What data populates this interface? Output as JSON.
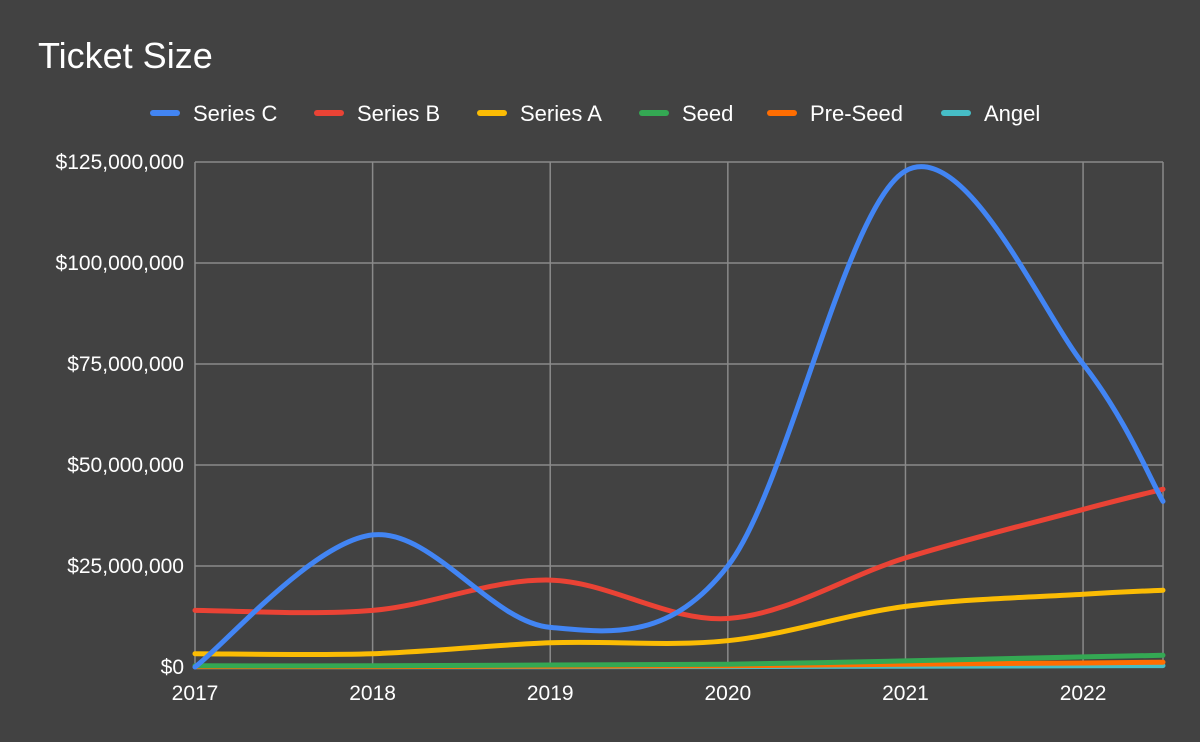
{
  "chart_data": {
    "type": "line",
    "title": "Ticket Size",
    "x": [
      2017,
      2018,
      2019,
      2020,
      2021,
      2022,
      2022.45
    ],
    "x_tick_labels": [
      "2017",
      "2018",
      "2019",
      "2020",
      "2021",
      "2022"
    ],
    "y_tick_labels": [
      "$0",
      "$25,000,000",
      "$50,000,000",
      "$75,000,000",
      "$100,000,000",
      "$125,000,000"
    ],
    "xlim": [
      2017,
      2022.45
    ],
    "ylim": [
      0,
      125000000
    ],
    "grid": true,
    "legend_position": "top",
    "background": "#424242",
    "series": [
      {
        "name": "Series C",
        "color": "#4285f4",
        "values": [
          0,
          32700000,
          9800000,
          25000000,
          122800000,
          75000000,
          41000000
        ]
      },
      {
        "name": "Series B",
        "color": "#ea4335",
        "values": [
          14000000,
          14000000,
          21500000,
          12000000,
          27000000,
          39000000,
          44000000
        ]
      },
      {
        "name": "Series A",
        "color": "#fbbc04",
        "values": [
          3300000,
          3300000,
          6000000,
          6500000,
          15000000,
          18000000,
          19000000
        ]
      },
      {
        "name": "Seed",
        "color": "#34a853",
        "values": [
          300000,
          300000,
          500000,
          700000,
          1500000,
          2500000,
          2900000
        ]
      },
      {
        "name": "Pre-Seed",
        "color": "#ff6d01",
        "values": [
          100000,
          100000,
          200000,
          300000,
          700000,
          1000000,
          1200000
        ]
      },
      {
        "name": "Angel",
        "color": "#46bdc6",
        "values": [
          50000,
          50000,
          80000,
          100000,
          200000,
          300000,
          350000
        ]
      }
    ]
  }
}
